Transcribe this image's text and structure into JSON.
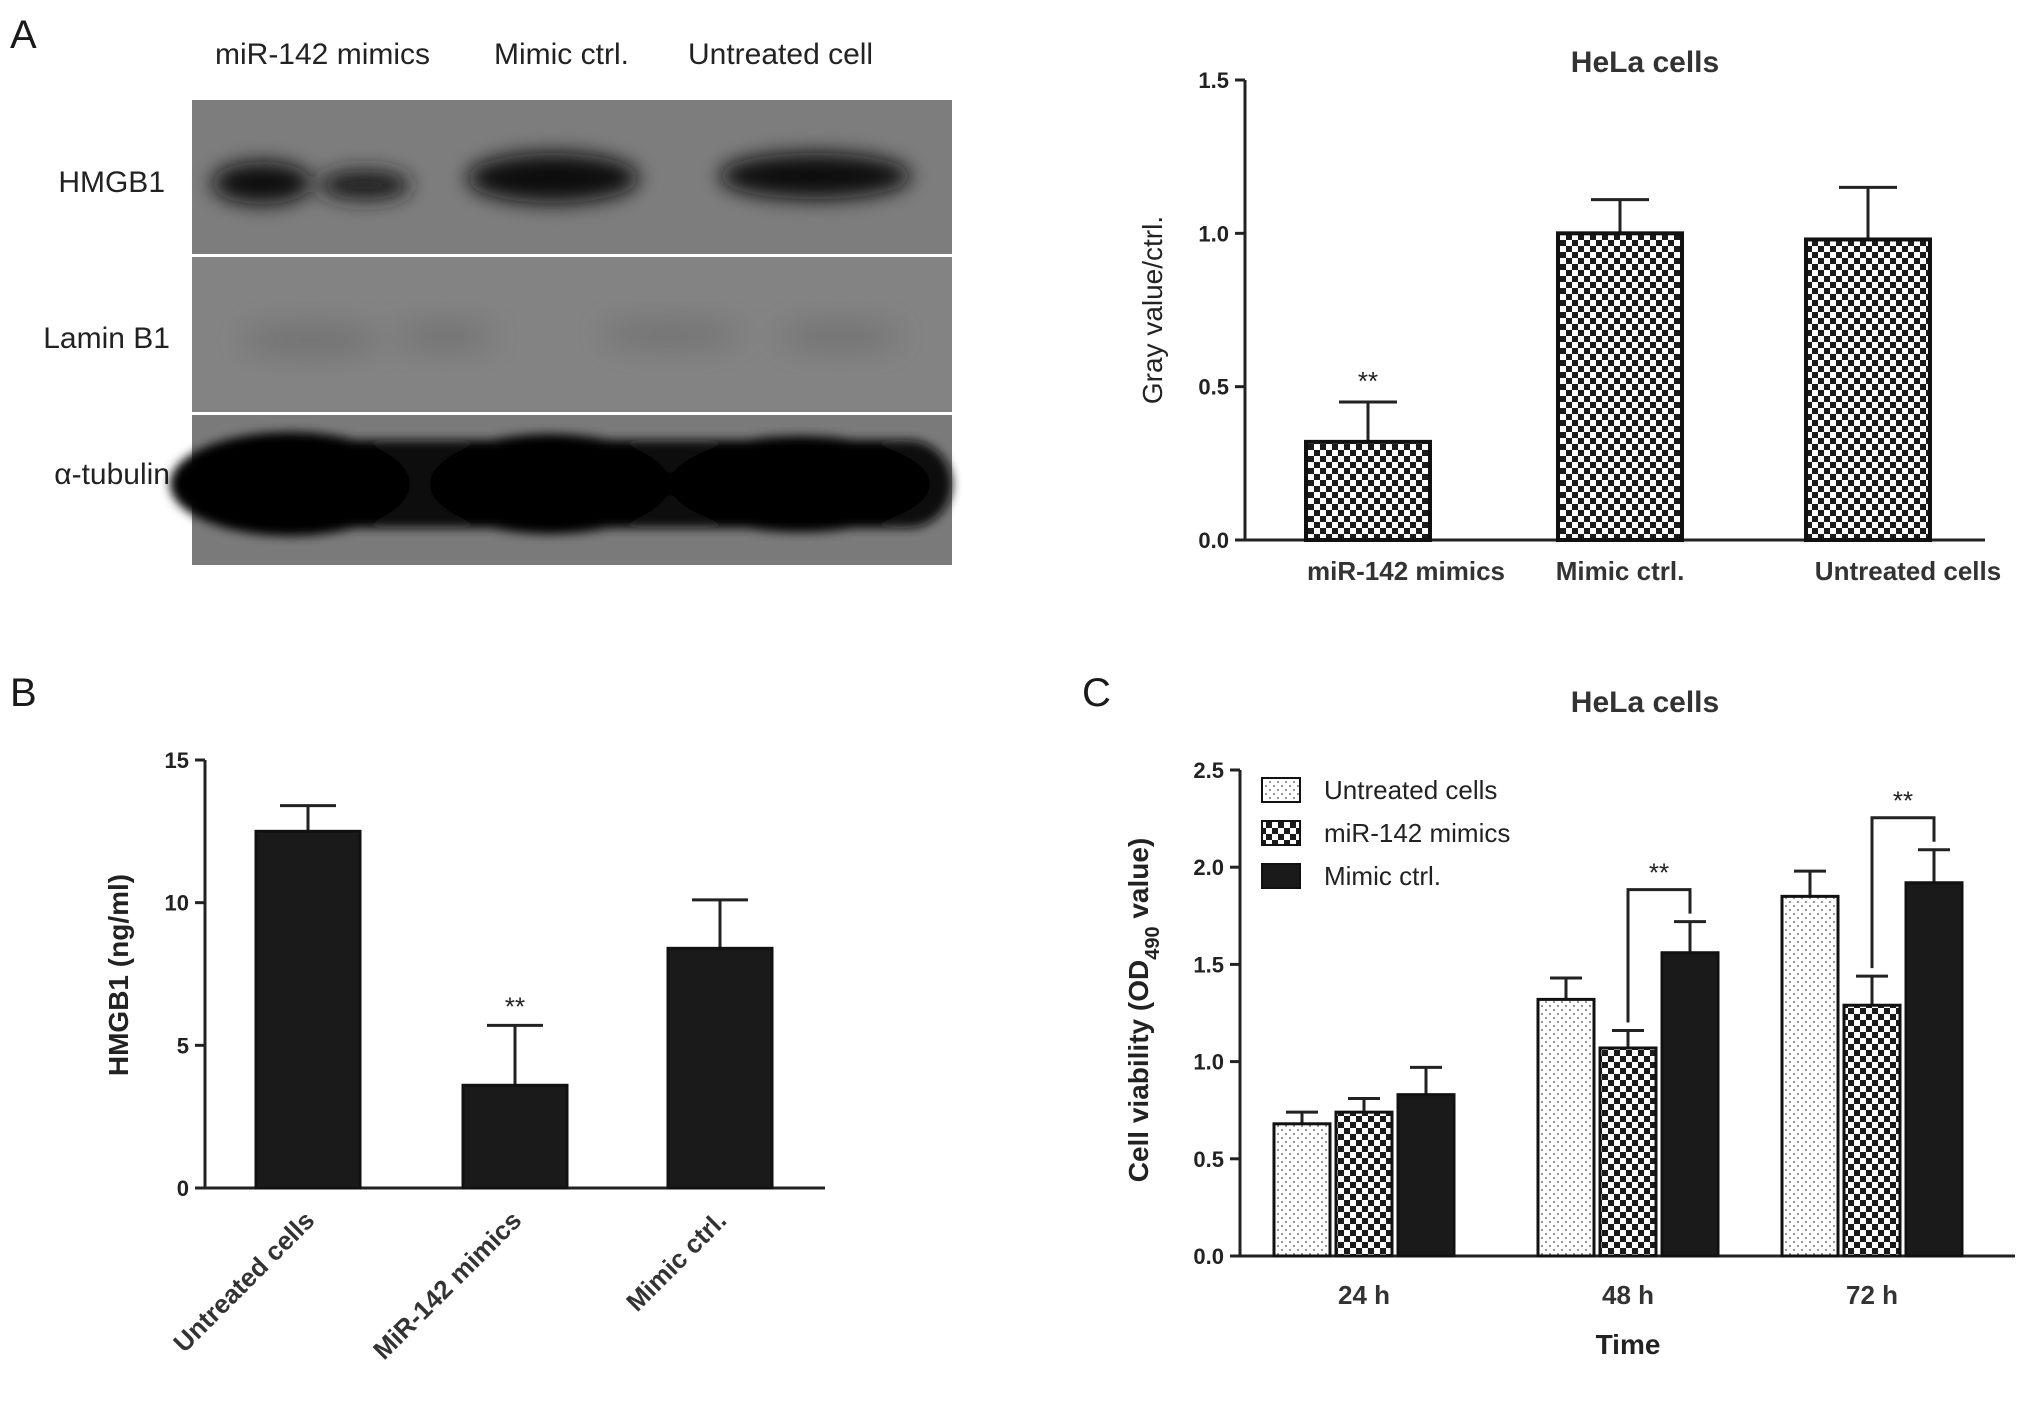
{
  "panel_letters": {
    "a": "A",
    "b": "B",
    "c": "C"
  },
  "blot": {
    "lane_labels": [
      "miR-142 mimics",
      "Mimic ctrl.",
      "Untreated cell"
    ],
    "row_labels": [
      "HMGB1",
      "Lamin B1",
      "α-tubulin"
    ]
  },
  "chart_data": [
    {
      "id": "A-right",
      "type": "bar",
      "title": "HeLa cells",
      "ylabel": "Gray value/ctrl.",
      "xlabel": "",
      "ylim": [
        0,
        1.5
      ],
      "yticks": [
        "0.0",
        "0.5",
        "1.0",
        "1.5"
      ],
      "categories": [
        "miR-142 mimics",
        "Mimic ctrl.",
        "Untreated cells"
      ],
      "values": [
        0.32,
        1.0,
        0.98
      ],
      "errors": [
        0.13,
        0.11,
        0.17
      ],
      "significance": [
        "**",
        "",
        ""
      ],
      "pattern": "checkered"
    },
    {
      "id": "B",
      "type": "bar",
      "title": "",
      "ylabel": "HMGB1 (ng/ml)",
      "xlabel": "",
      "ylim": [
        0,
        15
      ],
      "yticks": [
        "0",
        "5",
        "10",
        "15"
      ],
      "categories": [
        "Untreated cells",
        "MiR-142 mimics",
        "Mimic ctrl."
      ],
      "values": [
        12.5,
        3.6,
        8.4
      ],
      "errors": [
        0.9,
        2.1,
        1.7
      ],
      "significance": [
        "",
        "**",
        ""
      ],
      "pattern": "solid"
    },
    {
      "id": "C",
      "type": "bar",
      "title": "HeLa cells",
      "ylabel_main": "Cell viability (OD",
      "ylabel_sub": "490",
      "ylabel_tail": " value)",
      "xlabel": "Time",
      "ylim": [
        0,
        2.5
      ],
      "yticks": [
        "0.0",
        "0.5",
        "1.0",
        "1.5",
        "2.0",
        "2.5"
      ],
      "categories": [
        "24 h",
        "48 h",
        "72 h"
      ],
      "legend_position": "top-left",
      "series": [
        {
          "name": "Untreated cells",
          "values": [
            0.68,
            1.32,
            1.85
          ],
          "errors": [
            0.06,
            0.11,
            0.13
          ],
          "pattern": "dotted"
        },
        {
          "name": "miR-142 mimics",
          "values": [
            0.74,
            1.07,
            1.29
          ],
          "errors": [
            0.07,
            0.09,
            0.15
          ],
          "pattern": "checkered"
        },
        {
          "name": "Mimic ctrl.",
          "values": [
            0.83,
            1.56,
            1.92
          ],
          "errors": [
            0.14,
            0.16,
            0.17
          ],
          "pattern": "solid"
        }
      ],
      "brackets": [
        {
          "category": "48 h",
          "label": "**"
        },
        {
          "category": "72 h",
          "label": "**"
        }
      ]
    }
  ]
}
